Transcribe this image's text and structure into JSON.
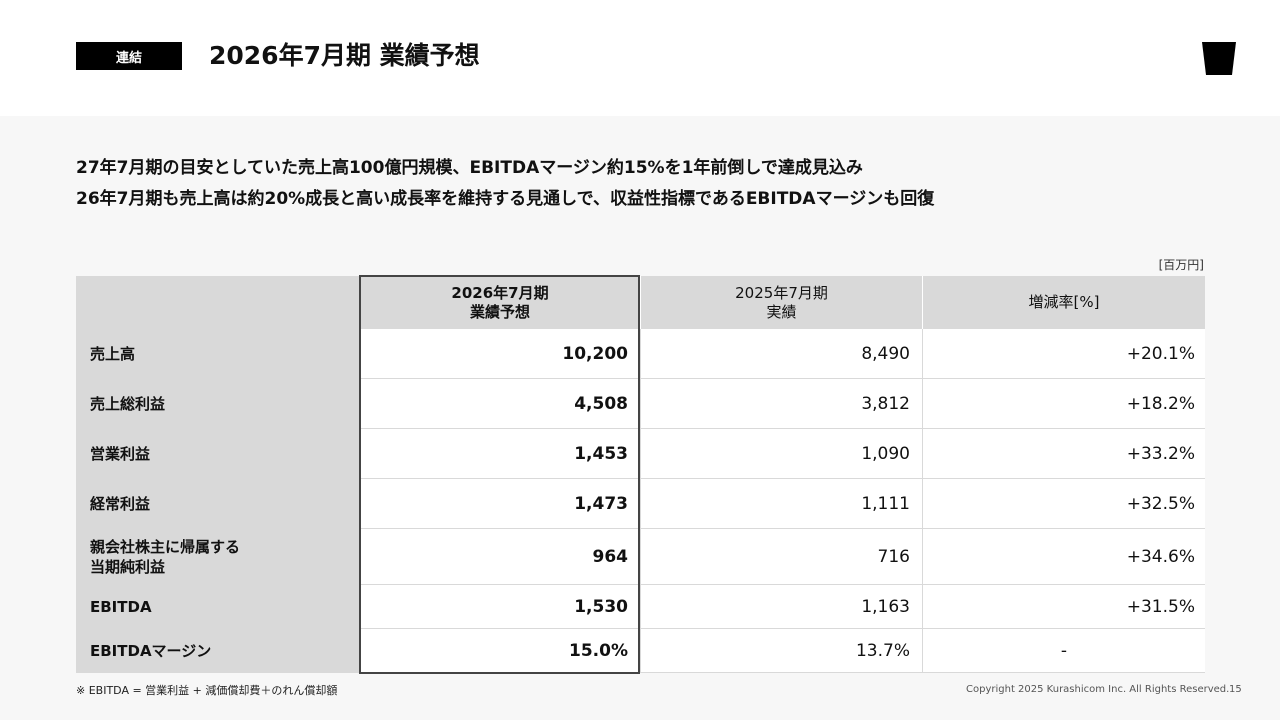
{
  "header": {
    "tag": "連結",
    "title": "2026年7月期 業績予想"
  },
  "lead": {
    "line1": "27年7月期の目安としていた売上高100億円規模、EBITDAマージン約15%を1年前倒しで達成見込み",
    "line2": "26年7月期も売上高は約20%成長と高い成長率を維持する見通しで、収益性指標であるEBITDAマージンも回復"
  },
  "table": {
    "unit": "[百万円]",
    "headers": {
      "forecast_line1": "2026年7月期",
      "forecast_line2": "業績予想",
      "actual_line1": "2025年7月期",
      "actual_line2": "実績",
      "change": "増減率[%]"
    },
    "rows": [
      {
        "label": "売上高",
        "forecast": "10,200",
        "actual": "8,490",
        "change": "+20.1%"
      },
      {
        "label": "売上総利益",
        "forecast": "4,508",
        "actual": "3,812",
        "change": "+18.2%"
      },
      {
        "label": "営業利益",
        "forecast": "1,453",
        "actual": "1,090",
        "change": "+33.2%"
      },
      {
        "label": "経常利益",
        "forecast": "1,473",
        "actual": "1,111",
        "change": "+32.5%"
      },
      {
        "label_line1": "親会社株主に帰属する",
        "label_line2": "当期純利益",
        "forecast": "964",
        "actual": "716",
        "change": "+34.6%"
      },
      {
        "label": "EBITDA",
        "forecast": "1,530",
        "actual": "1,163",
        "change": "+31.5%"
      },
      {
        "label": "EBITDAマージン",
        "forecast": "15.0%",
        "actual": "13.7%",
        "change": "-"
      }
    ]
  },
  "footer": {
    "footnote": "※ EBITDA = 営業利益 + 減価償却費＋のれん償却額",
    "copyright": "Copyright 2025 Kurashicom Inc. All Rights Reserved.",
    "page": "15"
  },
  "icons": {
    "logo": "cup-logo-icon"
  }
}
